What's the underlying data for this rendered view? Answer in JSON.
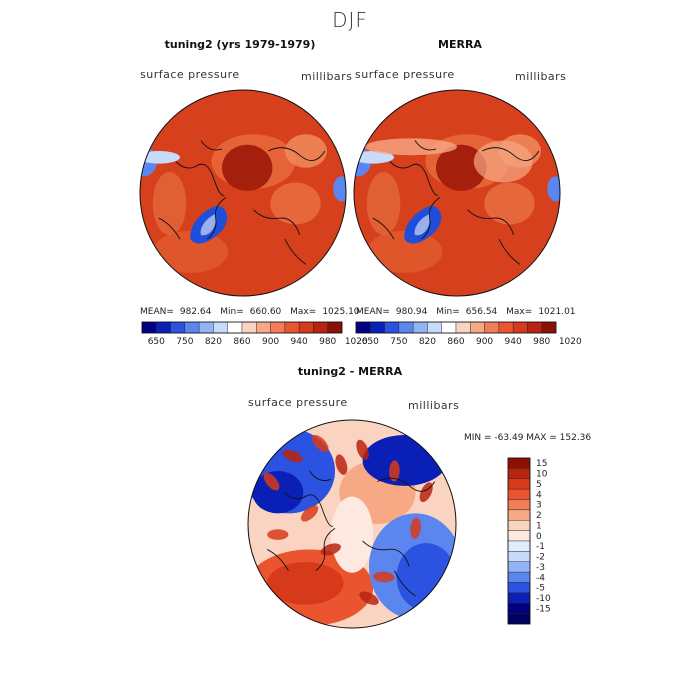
{
  "page_title": "DJF",
  "chart_data": [
    {
      "type": "heatmap",
      "projection": "polar-stereographic",
      "title": "tuning2 (yrs 1979-1979)",
      "variable": "surface pressure",
      "units": "millibars",
      "stats": {
        "mean_label": "MEAN=",
        "mean": "982.64",
        "min_label": "Min=",
        "min": "660.60",
        "max_label": "Max=",
        "max": "1025.10"
      },
      "colorbar": {
        "tick_labels": [
          "650",
          "750",
          "820",
          "860",
          "900",
          "940",
          "980",
          "1020"
        ],
        "colors": [
          "#000080",
          "#0a1fb5",
          "#2b52e0",
          "#5b85ef",
          "#93b3f7",
          "#c9dbfb",
          "#ffffff",
          "#fbd4c1",
          "#f7a885",
          "#f27d56",
          "#ea5530",
          "#d7391b",
          "#b82410",
          "#8c1005"
        ]
      }
    },
    {
      "type": "heatmap",
      "projection": "polar-stereographic",
      "title": "MERRA",
      "variable": "surface pressure",
      "units": "millibars",
      "stats": {
        "mean_label": "MEAN=",
        "mean": "980.94",
        "min_label": "Min=",
        "min": "656.54",
        "max_label": "Max=",
        "max": "1021.01"
      },
      "colorbar": {
        "tick_labels": [
          "650",
          "750",
          "820",
          "860",
          "900",
          "940",
          "980",
          "1020"
        ],
        "colors": [
          "#000080",
          "#0a1fb5",
          "#2b52e0",
          "#5b85ef",
          "#93b3f7",
          "#c9dbfb",
          "#ffffff",
          "#fbd4c1",
          "#f7a885",
          "#f27d56",
          "#ea5530",
          "#d7391b",
          "#b82410",
          "#8c1005"
        ]
      }
    },
    {
      "type": "heatmap",
      "projection": "polar-stereographic",
      "title": "tuning2 - MERRA",
      "variable": "surface pressure",
      "units": "millibars",
      "stats_text": "MIN = -63.49  MAX = 152.36",
      "colorbar": {
        "orientation": "vertical",
        "tick_labels": [
          "15",
          "10",
          "5",
          "4",
          "3",
          "2",
          "1",
          "0",
          "-1",
          "-2",
          "-3",
          "-4",
          "-5",
          "-10",
          "-15"
        ],
        "colors": [
          "#8c1005",
          "#b82410",
          "#d7391b",
          "#ea5530",
          "#f27d56",
          "#f7a885",
          "#fbd4c1",
          "#fde9e0",
          "#e2ecfb",
          "#c9dbfb",
          "#93b3f7",
          "#5b85ef",
          "#2b52e0",
          "#0a1fb5",
          "#000080",
          "#000060"
        ]
      }
    }
  ]
}
